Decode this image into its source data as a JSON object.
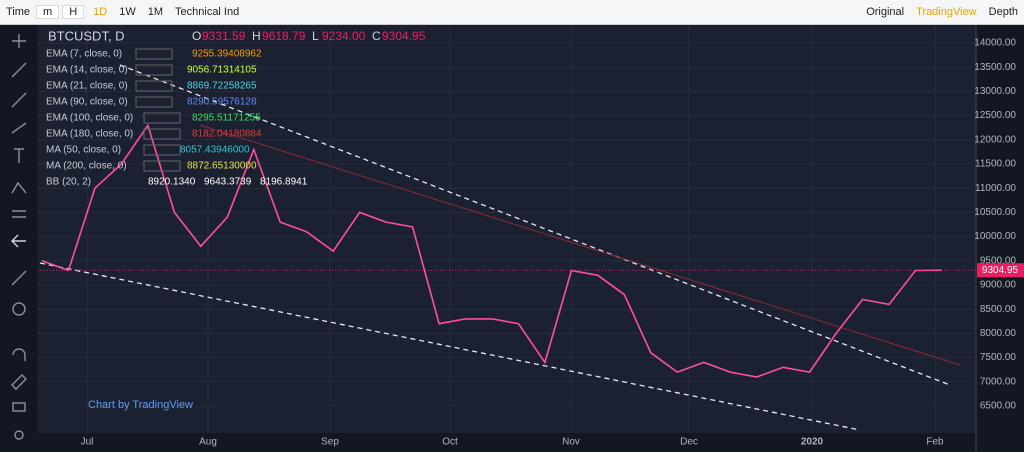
{
  "toolbar": {
    "left": [
      "Time",
      "m",
      "H",
      "1D",
      "1W",
      "1M",
      "Technical Ind"
    ],
    "right": [
      "Original",
      "TradingView",
      "Depth"
    ]
  },
  "legend": {
    "symbol": "BTCUSDT, D",
    "ohlc": [
      {
        "key": "O",
        "value": "9331.59"
      },
      {
        "key": "H",
        "value": "9618.79"
      },
      {
        "key": "L",
        "value": "9234.00"
      },
      {
        "key": "C",
        "value": "9304.95"
      }
    ],
    "indicators": [
      {
        "name": "EMA (7, close, 0)",
        "values": [
          "9255.39408962"
        ],
        "color": "#ff9800"
      },
      {
        "name": "EMA (14, close, 0)",
        "values": [
          "9056.71314105"
        ],
        "color": "#c6ff3a"
      },
      {
        "name": "EMA (21, close, 0)",
        "values": [
          "8869.72258265"
        ],
        "color": "#4dd0e1"
      },
      {
        "name": "EMA (90, close, 0)",
        "values": [
          "8290.59576128"
        ],
        "color": "#5b8def"
      },
      {
        "name": "EMA (100, close, 0)",
        "values": [
          "8295.51171255"
        ],
        "color": "#3ddc5c"
      },
      {
        "name": "EMA (180, close, 0)",
        "values": [
          "8182.04180884"
        ],
        "color": "#e53935"
      },
      {
        "name": "MA (50, close, 0)",
        "values": [
          "8057.43946000"
        ],
        "color": "#26c6da"
      },
      {
        "name": "MA (200, close, 0)",
        "values": [
          "8872.65130000"
        ],
        "color": "#e6e040"
      },
      {
        "name": "BB (20, 2)",
        "values": [
          "8920.1340",
          "9643.3739",
          "8196.8941"
        ],
        "color": "#ffffff"
      }
    ]
  },
  "watermark": "Chart by TradingView",
  "chart_data": {
    "type": "line",
    "series": [
      {
        "name": "BTCUSDT",
        "color": "#ff4fa0",
        "values": [
          9500,
          9300,
          11000,
          11500,
          12300,
          10500,
          9800,
          10400,
          11800,
          10300,
          10100,
          9700,
          10500,
          10300,
          10200,
          8200,
          8300,
          8300,
          8200,
          7400,
          9300,
          9200,
          8800,
          7600,
          7200,
          7400,
          7200,
          7100,
          7300,
          7200,
          8000,
          8700,
          8600,
          9300,
          9305
        ]
      }
    ],
    "last_price": {
      "value": 9304.95,
      "label": "9304.95"
    },
    "xlabels": [
      "Jul",
      "Aug",
      "Sep",
      "Oct",
      "Nov",
      "Dec",
      "2020",
      "Feb"
    ],
    "ylim": [
      6200,
      14300
    ],
    "yticks": [
      {
        "value": 6500,
        "label": "6500.00"
      },
      {
        "value": 7000,
        "label": "7000.00"
      },
      {
        "value": 7500,
        "label": "7500.00"
      },
      {
        "value": 8000,
        "label": "8000.00"
      },
      {
        "value": 8500,
        "label": "8500.00"
      },
      {
        "value": 9000,
        "label": "9000.00"
      },
      {
        "value": 9500,
        "label": "9500.00"
      },
      {
        "value": 10000,
        "label": "10000.00"
      },
      {
        "value": 10500,
        "label": "10500.00"
      },
      {
        "value": 11000,
        "label": "11000.00"
      },
      {
        "value": 11500,
        "label": "11500.00"
      },
      {
        "value": 12000,
        "label": "12000.00"
      },
      {
        "value": 12500,
        "label": "12500.00"
      },
      {
        "value": 13000,
        "label": "13000.00"
      },
      {
        "value": 13500,
        "label": "13500.00"
      },
      {
        "value": 14000,
        "label": "14000.00"
      }
    ],
    "grid": true
  }
}
